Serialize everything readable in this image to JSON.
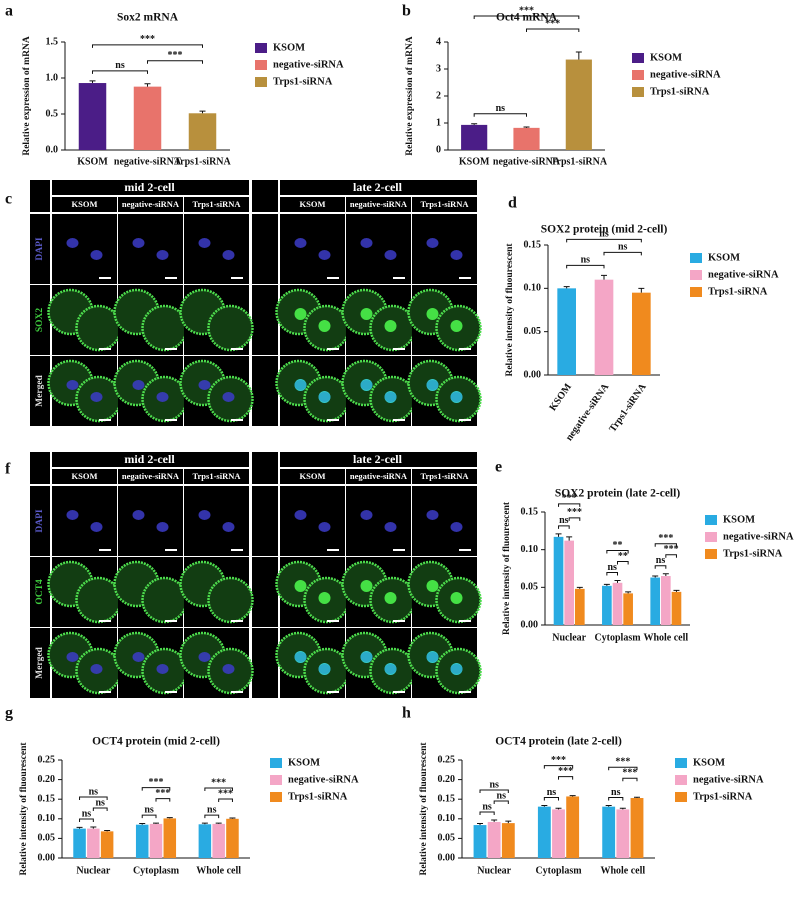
{
  "chart_data": [
    {
      "type": "bar",
      "panel": "a",
      "title": "Sox2 mRNA",
      "ylabel": "Relative expression of mRNA",
      "categories": [
        "KSOM",
        "negative-siRNA",
        "Trps1-siRNA"
      ],
      "values": [
        0.93,
        0.88,
        0.51
      ],
      "errors": [
        0.03,
        0.04,
        0.03
      ],
      "colors": [
        "#4b1d87",
        "#e8736b",
        "#b8903d"
      ],
      "ylim": [
        0,
        1.5
      ],
      "yticks": [
        {
          "value": 0,
          "label": "0.0"
        },
        0.5,
        {
          "value": 1,
          "label": "1.0"
        },
        1.5
      ],
      "annotations": [
        {
          "from": 0,
          "to": 1,
          "text": "ns"
        },
        {
          "from": 1,
          "to": 2,
          "text": "***"
        },
        {
          "from": 0,
          "to": 2,
          "text": "***"
        }
      ]
    },
    {
      "type": "bar",
      "panel": "b",
      "title": "Oct4 mRNA",
      "ylabel": "Relative expression of mRNA",
      "categories": [
        "KSOM",
        "negative-siRNA",
        "Trps1-siRNA"
      ],
      "values": [
        0.93,
        0.82,
        3.35
      ],
      "errors": [
        0.04,
        0.03,
        0.28
      ],
      "colors": [
        "#4b1d87",
        "#e8736b",
        "#b8903d"
      ],
      "ylim": [
        0,
        4
      ],
      "yticks": [
        0,
        1,
        2,
        3,
        4
      ],
      "annotations": [
        {
          "from": 0,
          "to": 1,
          "text": "ns"
        },
        {
          "from": 1,
          "to": 2,
          "text": "***"
        },
        {
          "from": 0,
          "to": 2,
          "text": "***"
        }
      ]
    },
    {
      "type": "bar",
      "panel": "d",
      "title": "SOX2 protein (mid 2-cell)",
      "ylabel": "Relative intensity of fluourescent",
      "categories": [
        "KSOM",
        "negative-siRNA",
        "Trps1-siRNA"
      ],
      "values": [
        0.1,
        0.11,
        0.095
      ],
      "errors": [
        0.002,
        0.005,
        0.005
      ],
      "colors": [
        "#29abe2",
        "#f4a6c6",
        "#f08a1e"
      ],
      "ylim": [
        0,
        0.15
      ],
      "yticks": [
        {
          "value": 0,
          "label": "0.00"
        },
        0.05,
        {
          "value": 0.1,
          "label": "0.10"
        },
        0.15
      ],
      "annotations": [
        {
          "from": 0,
          "to": 1,
          "text": "ns"
        },
        {
          "from": 1,
          "to": 2,
          "text": "ns"
        },
        {
          "from": 0,
          "to": 2,
          "text": "ns"
        }
      ]
    },
    {
      "type": "bar",
      "panel": "e",
      "title": "SOX2 protein (late 2-cell)",
      "ylabel": "Relative intensity of fluourescent",
      "categories": [
        "Nuclear",
        "Cytoplasm",
        "Whole cell"
      ],
      "series": [
        {
          "name": "KSOM",
          "color": "#29abe2",
          "values": [
            0.117,
            0.052,
            0.063
          ],
          "errors": [
            0.004,
            0.002,
            0.002
          ]
        },
        {
          "name": "negative-siRNA",
          "color": "#f4a6c6",
          "values": [
            0.112,
            0.056,
            0.065
          ],
          "errors": [
            0.005,
            0.003,
            0.003
          ]
        },
        {
          "name": "Trps1-siRNA",
          "color": "#f08a1e",
          "values": [
            0.048,
            0.042,
            0.044
          ],
          "errors": [
            0.002,
            0.002,
            0.002
          ]
        }
      ],
      "ylim": [
        0,
        0.15
      ],
      "yticks": [
        {
          "value": 0,
          "label": "0.00"
        },
        0.05,
        {
          "value": 0.1,
          "label": "0.10"
        },
        0.15
      ],
      "annotations": [
        {
          "group": 0,
          "from": 0,
          "to": 1,
          "text": "ns"
        },
        {
          "group": 0,
          "from": 1,
          "to": 2,
          "text": "***"
        },
        {
          "group": 0,
          "from": 0,
          "to": 2,
          "text": "***"
        },
        {
          "group": 1,
          "from": 0,
          "to": 1,
          "text": "ns"
        },
        {
          "group": 1,
          "from": 1,
          "to": 2,
          "text": "**"
        },
        {
          "group": 1,
          "from": 0,
          "to": 2,
          "text": "**"
        },
        {
          "group": 2,
          "from": 0,
          "to": 1,
          "text": "ns"
        },
        {
          "group": 2,
          "from": 1,
          "to": 2,
          "text": "***"
        },
        {
          "group": 2,
          "from": 0,
          "to": 2,
          "text": "***"
        }
      ]
    },
    {
      "type": "bar",
      "panel": "g",
      "title": "OCT4 protein (mid 2-cell)",
      "ylabel": "Relative intensity of fluourescent",
      "categories": [
        "Nuclear",
        "Cytoplasm",
        "Whole cell"
      ],
      "series": [
        {
          "name": "KSOM",
          "color": "#29abe2",
          "values": [
            0.075,
            0.085,
            0.086
          ],
          "errors": [
            0.003,
            0.003,
            0.003
          ]
        },
        {
          "name": "negative-siRNA",
          "color": "#f4a6c6",
          "values": [
            0.075,
            0.087,
            0.087
          ],
          "errors": [
            0.004,
            0.002,
            0.002
          ]
        },
        {
          "name": "Trps1-siRNA",
          "color": "#f08a1e",
          "values": [
            0.068,
            0.101,
            0.1
          ],
          "errors": [
            0.002,
            0.002,
            0.002
          ]
        }
      ],
      "ylim": [
        0,
        0.25
      ],
      "yticks": [
        {
          "value": 0,
          "label": "0.00"
        },
        0.05,
        {
          "value": 0.1,
          "label": "0.10"
        },
        0.15,
        {
          "value": 0.2,
          "label": "0.20"
        },
        0.25
      ],
      "annotations": [
        {
          "group": 0,
          "from": 0,
          "to": 1,
          "text": "ns"
        },
        {
          "group": 0,
          "from": 1,
          "to": 2,
          "text": "ns"
        },
        {
          "group": 0,
          "from": 0,
          "to": 2,
          "text": "ns"
        },
        {
          "group": 1,
          "from": 0,
          "to": 1,
          "text": "ns"
        },
        {
          "group": 1,
          "from": 1,
          "to": 2,
          "text": "***"
        },
        {
          "group": 1,
          "from": 0,
          "to": 2,
          "text": "***"
        },
        {
          "group": 2,
          "from": 0,
          "to": 1,
          "text": "ns"
        },
        {
          "group": 2,
          "from": 1,
          "to": 2,
          "text": "***"
        },
        {
          "group": 2,
          "from": 0,
          "to": 2,
          "text": "***"
        }
      ]
    },
    {
      "type": "bar",
      "panel": "h",
      "title": "OCT4 protein (late 2-cell)",
      "ylabel": "Relative intensity of fluourescent",
      "categories": [
        "Nuclear",
        "Cytoplasm",
        "Whole cell"
      ],
      "series": [
        {
          "name": "KSOM",
          "color": "#29abe2",
          "values": [
            0.084,
            0.131,
            0.131
          ],
          "errors": [
            0.004,
            0.003,
            0.003
          ]
        },
        {
          "name": "negative-siRNA",
          "color": "#f4a6c6",
          "values": [
            0.092,
            0.124,
            0.124
          ],
          "errors": [
            0.005,
            0.003,
            0.003
          ]
        },
        {
          "name": "Trps1-siRNA",
          "color": "#f08a1e",
          "values": [
            0.089,
            0.157,
            0.153
          ],
          "errors": [
            0.005,
            0.002,
            0.002
          ]
        }
      ],
      "ylim": [
        0,
        0.25
      ],
      "yticks": [
        {
          "value": 0,
          "label": "0.00"
        },
        0.05,
        {
          "value": 0.1,
          "label": "0.10"
        },
        0.15,
        {
          "value": 0.2,
          "label": "0.20"
        },
        0.25
      ],
      "annotations": [
        {
          "group": 0,
          "from": 0,
          "to": 1,
          "text": "ns"
        },
        {
          "group": 0,
          "from": 1,
          "to": 2,
          "text": "ns"
        },
        {
          "group": 0,
          "from": 0,
          "to": 2,
          "text": "ns"
        },
        {
          "group": 1,
          "from": 0,
          "to": 1,
          "text": "ns"
        },
        {
          "group": 1,
          "from": 1,
          "to": 2,
          "text": "***"
        },
        {
          "group": 1,
          "from": 0,
          "to": 2,
          "text": "***"
        },
        {
          "group": 2,
          "from": 0,
          "to": 1,
          "text": "ns"
        },
        {
          "group": 2,
          "from": 1,
          "to": 2,
          "text": "***"
        },
        {
          "group": 2,
          "from": 0,
          "to": 2,
          "text": "***"
        }
      ]
    }
  ],
  "image_panels": [
    {
      "panel": "c",
      "groups": [
        "mid 2-cell",
        "late 2-cell"
      ],
      "columns": [
        "KSOM",
        "negative-siRNA",
        "Trps1-siRNA"
      ],
      "rows": [
        "DAPI",
        "SOX2",
        "Merged"
      ]
    },
    {
      "panel": "f",
      "groups": [
        "mid 2-cell",
        "late 2-cell"
      ],
      "columns": [
        "KSOM",
        "negative-siRNA",
        "Trps1-siRNA"
      ],
      "rows": [
        "DAPI",
        "OCT4",
        "Merged"
      ]
    }
  ]
}
